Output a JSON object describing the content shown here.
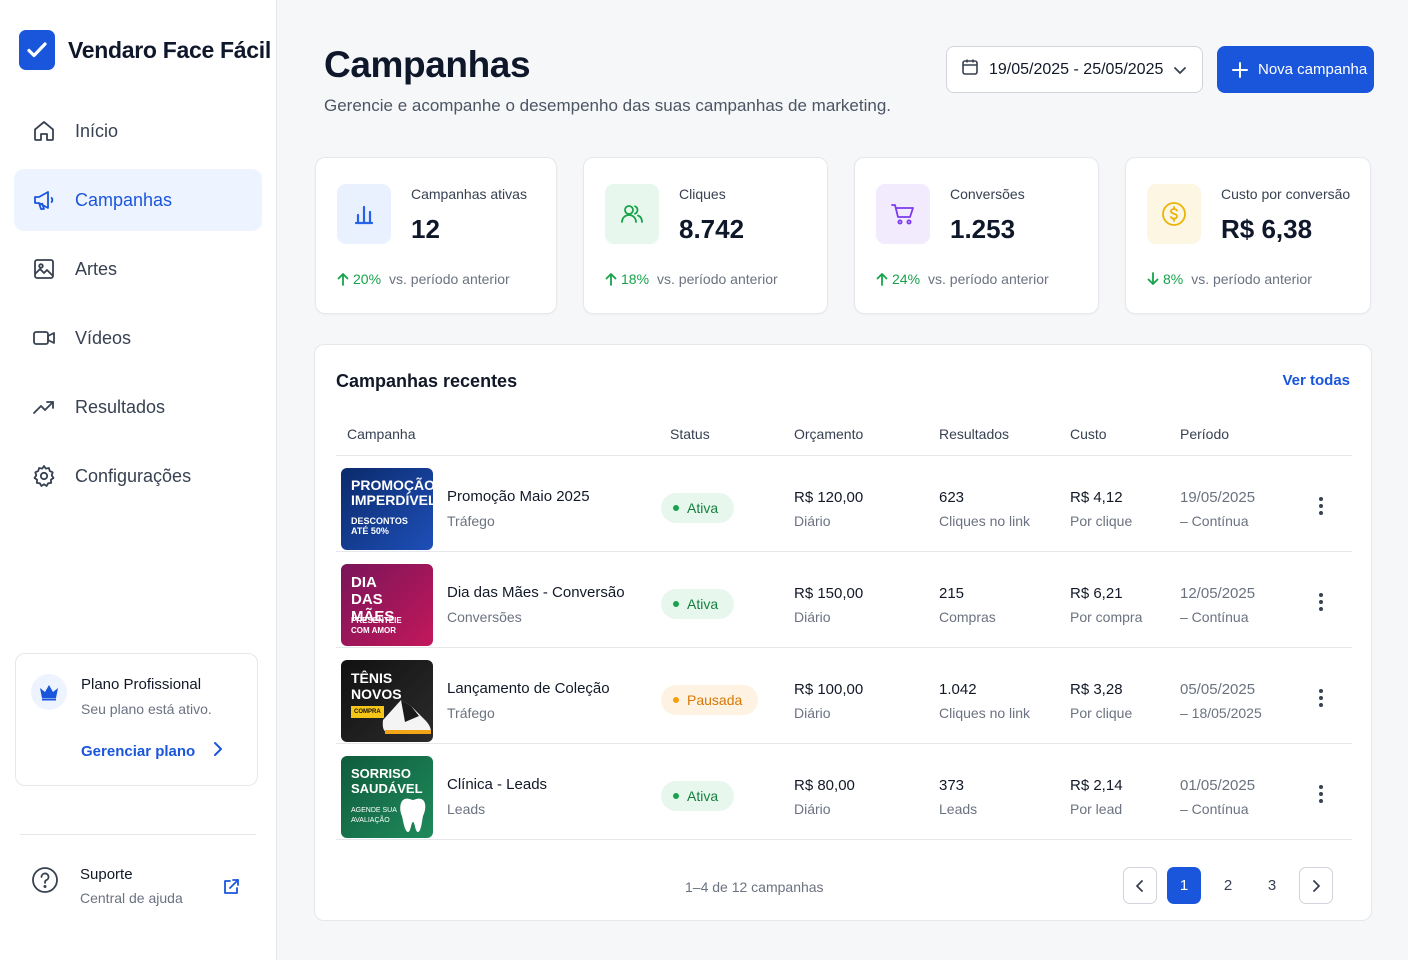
{
  "brand": {
    "name": "Vendaro Face Fácil"
  },
  "nav": [
    {
      "label": "Início",
      "icon": "home-icon",
      "active": false
    },
    {
      "label": "Campanhas",
      "icon": "megaphone-icon",
      "active": true
    },
    {
      "label": "Artes",
      "icon": "image-icon",
      "active": false
    },
    {
      "label": "Vídeos",
      "icon": "video-icon",
      "active": false
    },
    {
      "label": "Resultados",
      "icon": "trending-up-icon",
      "active": false
    },
    {
      "label": "Configurações",
      "icon": "gear-icon",
      "active": false
    }
  ],
  "plan": {
    "title": "Plano Profissional",
    "subtitle": "Seu plano está ativo.",
    "link": "Gerenciar plano"
  },
  "support": {
    "title": "Suporte",
    "subtitle": "Central de ajuda"
  },
  "header": {
    "title": "Campanhas",
    "subtitle": "Gerencie e acompanhe o desempenho das suas campanhas de marketing.",
    "date_range": "19/05/2025 - 25/05/2025",
    "new_button": "Nova campanha"
  },
  "stats": [
    {
      "label": "Campanhas ativas",
      "value": "12",
      "trend": "up",
      "pct": "20%",
      "compare": "vs. período anterior",
      "icon": "bar-chart-icon",
      "color": "#2563eb",
      "bg": "#eaf1fe"
    },
    {
      "label": "Cliques",
      "value": "8.742",
      "trend": "up",
      "pct": "18%",
      "compare": "vs. período anterior",
      "icon": "users-icon",
      "color": "#16a34a",
      "bg": "#e8f7ee"
    },
    {
      "label": "Conversões",
      "value": "1.253",
      "trend": "up",
      "pct": "24%",
      "compare": "vs. período anterior",
      "icon": "cart-icon",
      "color": "#7c3aed",
      "bg": "#f1ebfd"
    },
    {
      "label": "Custo por conversão",
      "value": "R$ 6,38",
      "trend": "down",
      "pct": "8%",
      "compare": "vs. período anterior",
      "icon": "coin-icon",
      "color": "#eab308",
      "bg": "#fdf6e3"
    }
  ],
  "recent": {
    "title": "Campanhas recentes",
    "view_all": "Ver todas",
    "columns": [
      "Campanha",
      "Status",
      "Orçamento",
      "Resultados",
      "Custo",
      "Período"
    ],
    "rows": [
      {
        "thumb_title": "PROMOÇÃO IMPERDÍVEL",
        "thumb_sub": "DESCONTOS ATÉ 50%",
        "name": "Promoção Maio 2025",
        "type": "Tráfego",
        "status": "Ativa",
        "budget": "R$ 120,00",
        "budget_freq": "Diário",
        "results": "623",
        "results_type": "Cliques no link",
        "cost": "R$ 4,12",
        "cost_unit": "Por clique",
        "period_start": "19/05/2025",
        "period_end": "– Contínua"
      },
      {
        "thumb_title": "DIA DAS MÃES",
        "thumb_sub": "PRESENTEIE COM AMOR",
        "name": "Dia das Mães - Conversão",
        "type": "Conversões",
        "status": "Ativa",
        "budget": "R$ 150,00",
        "budget_freq": "Diário",
        "results": "215",
        "results_type": "Compras",
        "cost": "R$ 6,21",
        "cost_unit": "Por compra",
        "period_start": "12/05/2025",
        "period_end": "– Contínua"
      },
      {
        "thumb_title": "TÊNIS NOVOS",
        "thumb_sub": "COMPRA",
        "name": "Lançamento de Coleção",
        "type": "Tráfego",
        "status": "Pausada",
        "budget": "R$ 100,00",
        "budget_freq": "Diário",
        "results": "1.042",
        "results_type": "Cliques no link",
        "cost": "R$ 3,28",
        "cost_unit": "Por clique",
        "period_start": "05/05/2025",
        "period_end": "– 18/05/2025"
      },
      {
        "thumb_title": "SORRISO SAUDÁVEL",
        "thumb_sub": "AGENDE SUA AVALIAÇÃO",
        "name": "Clínica - Leads",
        "type": "Leads",
        "status": "Ativa",
        "budget": "R$ 80,00",
        "budget_freq": "Diário",
        "results": "373",
        "results_type": "Leads",
        "cost": "R$ 2,14",
        "cost_unit": "Por lead",
        "period_start": "01/05/2025",
        "period_end": "– Contínua"
      }
    ],
    "pagination": {
      "summary": "1–4 de 12 campanhas",
      "pages": [
        "1",
        "2",
        "3"
      ],
      "current": "1"
    }
  },
  "colors": {
    "accent": "#1a56db",
    "active_badge_bg": "#e8f7ee",
    "active_badge_fg": "#15803d",
    "paused_badge_bg": "#fef3e2",
    "paused_badge_fg": "#d97706"
  }
}
